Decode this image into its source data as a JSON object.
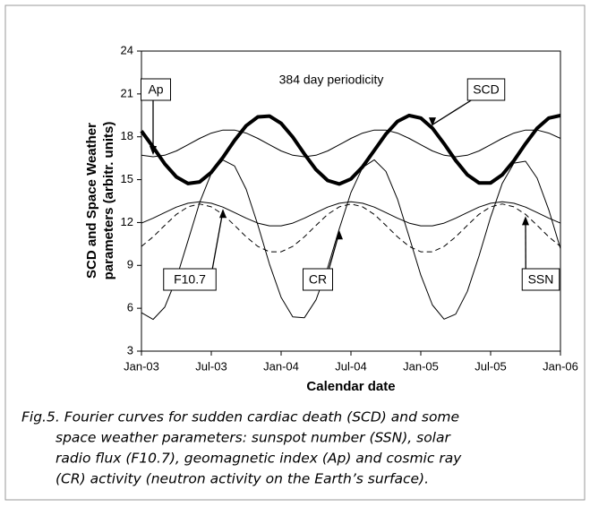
{
  "chart_data": {
    "type": "line",
    "categories": [
      "Jan-03",
      null,
      null,
      null,
      null,
      null,
      "Jul-03",
      null,
      null,
      null,
      null,
      null,
      "Jan-04",
      null,
      null,
      null,
      null,
      null,
      "Jul-04",
      null,
      null,
      null,
      null,
      null,
      "Jan-05",
      null,
      null,
      null,
      null,
      null,
      "Jul-05",
      null,
      null,
      null,
      null,
      null,
      "Jan-06"
    ],
    "series": [
      {
        "name": "SCD",
        "color": "#000000",
        "width": 4,
        "dashed": false,
        "values": [
          18.4,
          17.28,
          16.11,
          15.19,
          14.73,
          14.84,
          15.51,
          16.56,
          17.75,
          18.78,
          19.39,
          19.45,
          18.94,
          17.98,
          16.8,
          15.7,
          14.94,
          14.7,
          15.05,
          15.9,
          17.04,
          18.19,
          19.08,
          19.49,
          19.31,
          18.6,
          17.52,
          16.34,
          15.34,
          14.77,
          14.77,
          15.34,
          16.33,
          17.52,
          18.6,
          19.31,
          19.49
        ]
      },
      {
        "name": "Ap",
        "color": "#000000",
        "width": 1,
        "dashed": false,
        "values": [
          16.71,
          16.6,
          16.71,
          17.01,
          17.44,
          17.89,
          18.26,
          18.47,
          18.47,
          18.26,
          17.89,
          17.44,
          17.01,
          16.71,
          16.6,
          16.71,
          17.01,
          17.44,
          17.89,
          18.26,
          18.47,
          18.47,
          18.26,
          17.89,
          17.44,
          17.01,
          16.71,
          16.6,
          16.71,
          17.01,
          17.44,
          17.89,
          18.26,
          18.47,
          18.47,
          18.26,
          17.89
        ]
      },
      {
        "name": "F10.7",
        "color": "#000000",
        "width": 1,
        "dashed": false,
        "values": [
          11.96,
          12.3,
          12.7,
          13.08,
          13.35,
          13.45,
          13.35,
          13.08,
          12.7,
          12.3,
          11.96,
          11.77,
          11.77,
          11.96,
          12.3,
          12.7,
          13.08,
          13.35,
          13.45,
          13.35,
          13.08,
          12.7,
          12.3,
          11.96,
          11.77,
          11.77,
          11.96,
          12.3,
          12.7,
          13.08,
          13.35,
          13.45,
          13.35,
          13.08,
          12.7,
          12.3,
          11.96
        ]
      },
      {
        "name": "CR",
        "color": "#000000",
        "width": 1,
        "dashed": false,
        "values": [
          5.69,
          5.22,
          6.08,
          8.08,
          10.73,
          13.4,
          15.44,
          16.37,
          15.96,
          14.32,
          11.83,
          9.09,
          6.76,
          5.4,
          5.34,
          6.59,
          8.84,
          11.57,
          14.1,
          15.86,
          16.39,
          15.58,
          13.63,
          11.0,
          8.32,
          6.23,
          5.24,
          5.59,
          7.18,
          9.65,
          12.38,
          14.74,
          16.16,
          16.29,
          15.1,
          12.88,
          10.17
        ]
      },
      {
        "name": "SSN",
        "color": "#000000",
        "width": 1,
        "dashed": true,
        "values": [
          10.33,
          11.0,
          11.8,
          12.57,
          13.1,
          13.3,
          13.1,
          12.57,
          11.8,
          11.0,
          10.33,
          9.95,
          9.95,
          10.33,
          11.0,
          11.8,
          12.57,
          13.1,
          13.3,
          13.1,
          12.57,
          11.8,
          11.0,
          10.33,
          9.95,
          9.95,
          10.33,
          11.0,
          11.8,
          12.57,
          13.1,
          13.3,
          13.1,
          12.57,
          11.8,
          11.0,
          10.33
        ]
      }
    ],
    "ylim": [
      3,
      24
    ],
    "yticks": [
      3,
      6,
      9,
      12,
      15,
      18,
      21,
      24
    ],
    "grid": false,
    "annotation": "384 day periodicity",
    "xlabel": "Calendar date",
    "ylabel": [
      "SCD and Space Weather",
      "parameters (arbitr. units)"
    ]
  },
  "caption": [
    "Fig.5. Fourier curves for sudden cardiac death (SCD) and some",
    "space weather parameters: sunspot number (SSN), solar",
    "radio flux (F10.7), geomagnetic index (Ap) and cosmic ray",
    "(CR) activity (neutron activity on the Earth’s surface)."
  ]
}
